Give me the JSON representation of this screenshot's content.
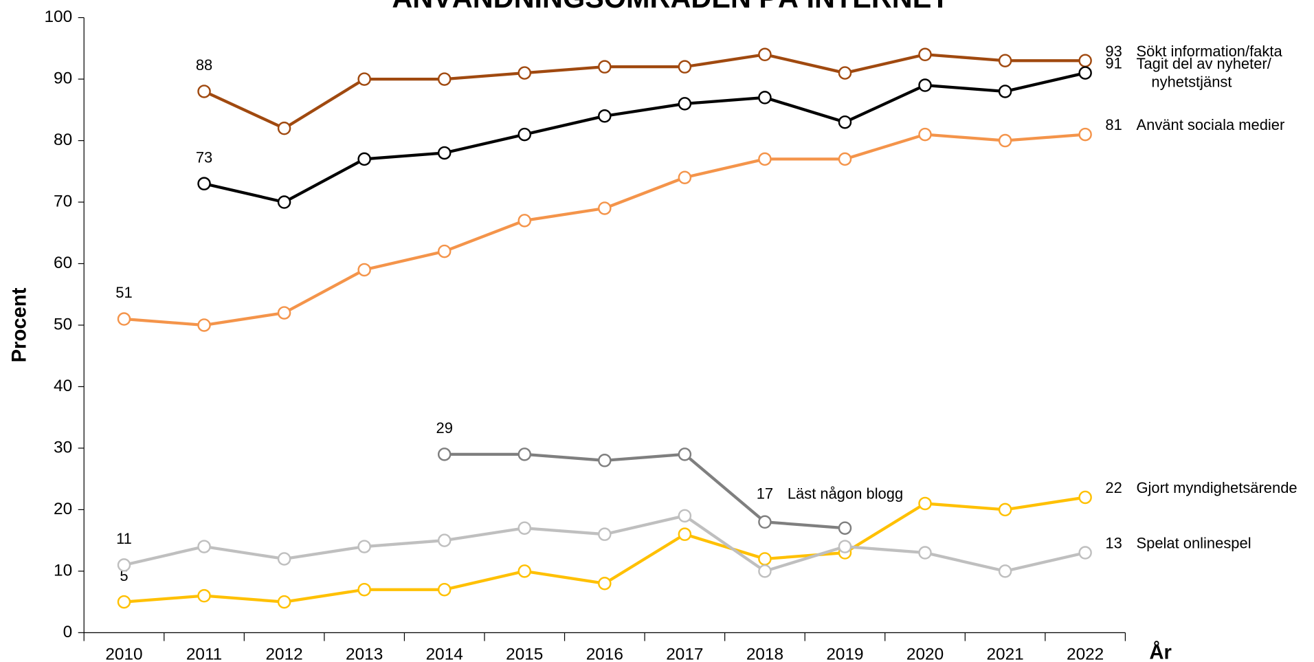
{
  "chart_data": {
    "type": "line",
    "title": "ANVÄNDNINGSOMRÅDEN PÅ INTERNET",
    "x_label": "År",
    "y_label": "Procent",
    "categories": [
      "2010",
      "2011",
      "2012",
      "2013",
      "2014",
      "2015",
      "2016",
      "2017",
      "2018",
      "2019",
      "2020",
      "2021",
      "2022"
    ],
    "ylim": [
      0,
      100
    ],
    "yticks": [
      0,
      10,
      20,
      30,
      40,
      50,
      60,
      70,
      80,
      90,
      100
    ],
    "series": [
      {
        "name": "Sökt information/fakta",
        "color": "#a0490f",
        "values": [
          null,
          88,
          82,
          90,
          90,
          91,
          92,
          92,
          94,
          91,
          94,
          93,
          93
        ]
      },
      {
        "name": "Tagit del av nyheter/ nyhetstjänst",
        "color": "#000000",
        "values": [
          null,
          73,
          70,
          77,
          78,
          81,
          84,
          86,
          87,
          83,
          89,
          88,
          91
        ]
      },
      {
        "name": "Använt sociala medier",
        "color": "#f4944a",
        "values": [
          51,
          50,
          52,
          59,
          62,
          67,
          69,
          74,
          77,
          77,
          81,
          80,
          81
        ]
      },
      {
        "name": "Läst någon blogg",
        "color": "#7f7f7f",
        "values": [
          null,
          null,
          null,
          null,
          29,
          29,
          28,
          29,
          18,
          17,
          null,
          null,
          null
        ]
      },
      {
        "name": "Gjort myndighetsärende",
        "color": "#ffc000",
        "values": [
          5,
          6,
          5,
          7,
          7,
          10,
          8,
          16,
          12,
          13,
          21,
          20,
          22
        ]
      },
      {
        "name": "Spelat onlinespel",
        "color": "#bfbfbf",
        "values": [
          11,
          14,
          12,
          14,
          15,
          17,
          16,
          19,
          10,
          14,
          13,
          10,
          13
        ]
      }
    ]
  }
}
